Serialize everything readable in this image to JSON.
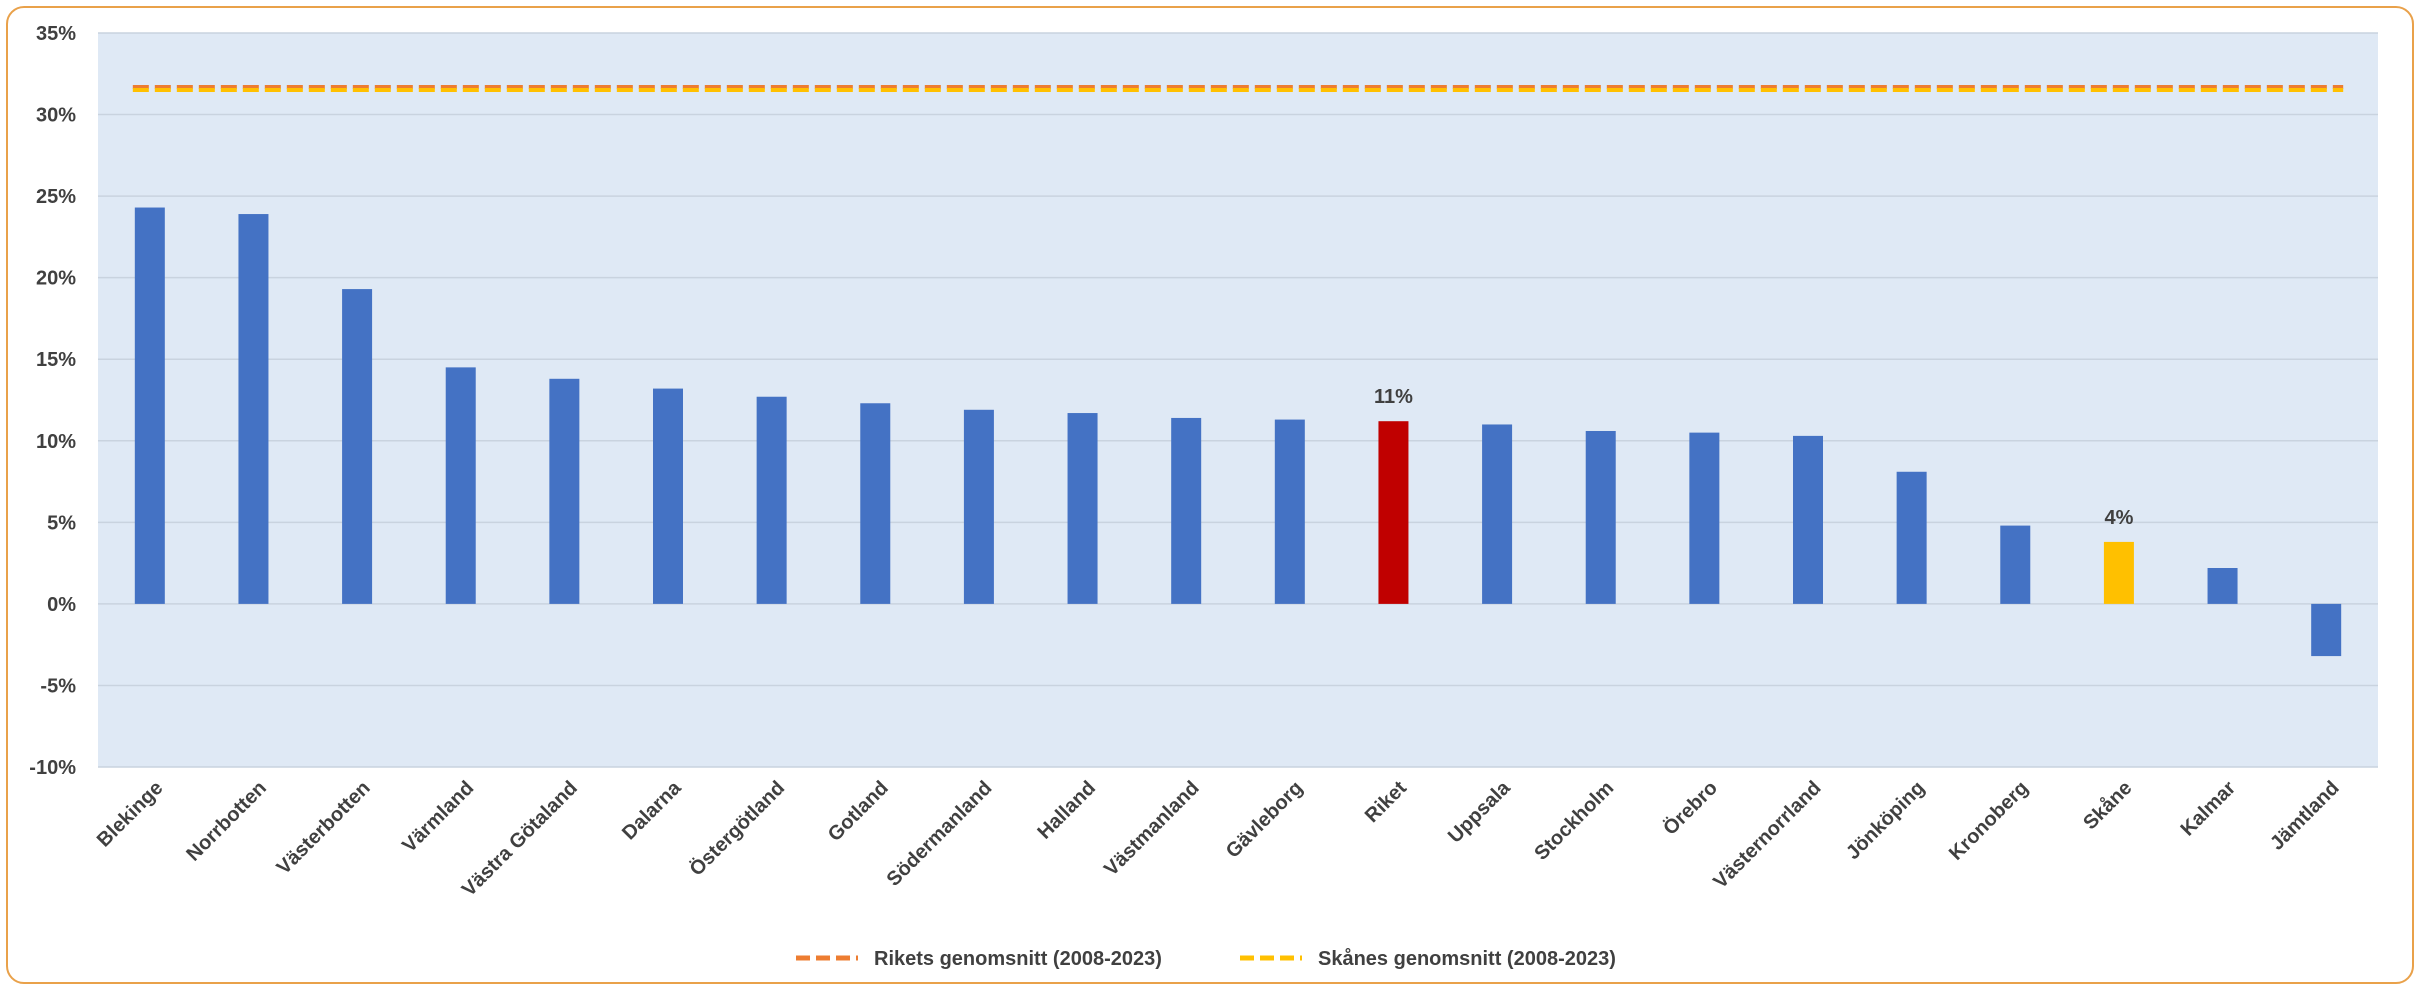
{
  "chart_data": {
    "type": "bar",
    "categories": [
      "Blekinge",
      "Norrbotten",
      "Västerbotten",
      "Värmland",
      "Västra Götaland",
      "Dalarna",
      "Östergötland",
      "Gotland",
      "Södermanland",
      "Halland",
      "Västmanland",
      "Gävleborg",
      "Riket",
      "Uppsala",
      "Stockholm",
      "Örebro",
      "Västernorrland",
      "Jönköping",
      "Kronoberg",
      "Skåne",
      "Kalmar",
      "Jämtland"
    ],
    "values": [
      24.3,
      23.9,
      19.3,
      14.5,
      13.8,
      13.2,
      12.7,
      12.3,
      11.9,
      11.7,
      11.4,
      11.3,
      11.2,
      11.0,
      10.6,
      10.5,
      10.3,
      8.1,
      4.8,
      3.8,
      2.2,
      -3.2
    ],
    "bar_colors": {
      "default": "#4472c4",
      "Riket": "#c00000",
      "Skåne": "#ffc000"
    },
    "data_labels": [
      {
        "category": "Riket",
        "text": "11%"
      },
      {
        "category": "Skåne",
        "text": "4%"
      }
    ],
    "reference_lines": [
      {
        "name": "Rikets genomsnitt (2008-2023)",
        "value": 31.6,
        "color": "#ed7d31",
        "style": "dashed"
      },
      {
        "name": "Skånes genomsnitt (2008-2023)",
        "value": 31.6,
        "color": "#ffc000",
        "style": "dashed"
      }
    ],
    "ylim": [
      -10,
      35
    ],
    "y_ticks": [
      35,
      30,
      25,
      20,
      15,
      10,
      5,
      0,
      -5,
      -10
    ],
    "y_tick_labels": [
      "35%",
      "30%",
      "25%",
      "20%",
      "15%",
      "10%",
      "5%",
      "0%",
      "-5%",
      "-10%"
    ],
    "plot_background": "#dfe9f5",
    "grid": true,
    "legend_position": "bottom-center",
    "title": "",
    "xlabel": "",
    "ylabel": ""
  }
}
